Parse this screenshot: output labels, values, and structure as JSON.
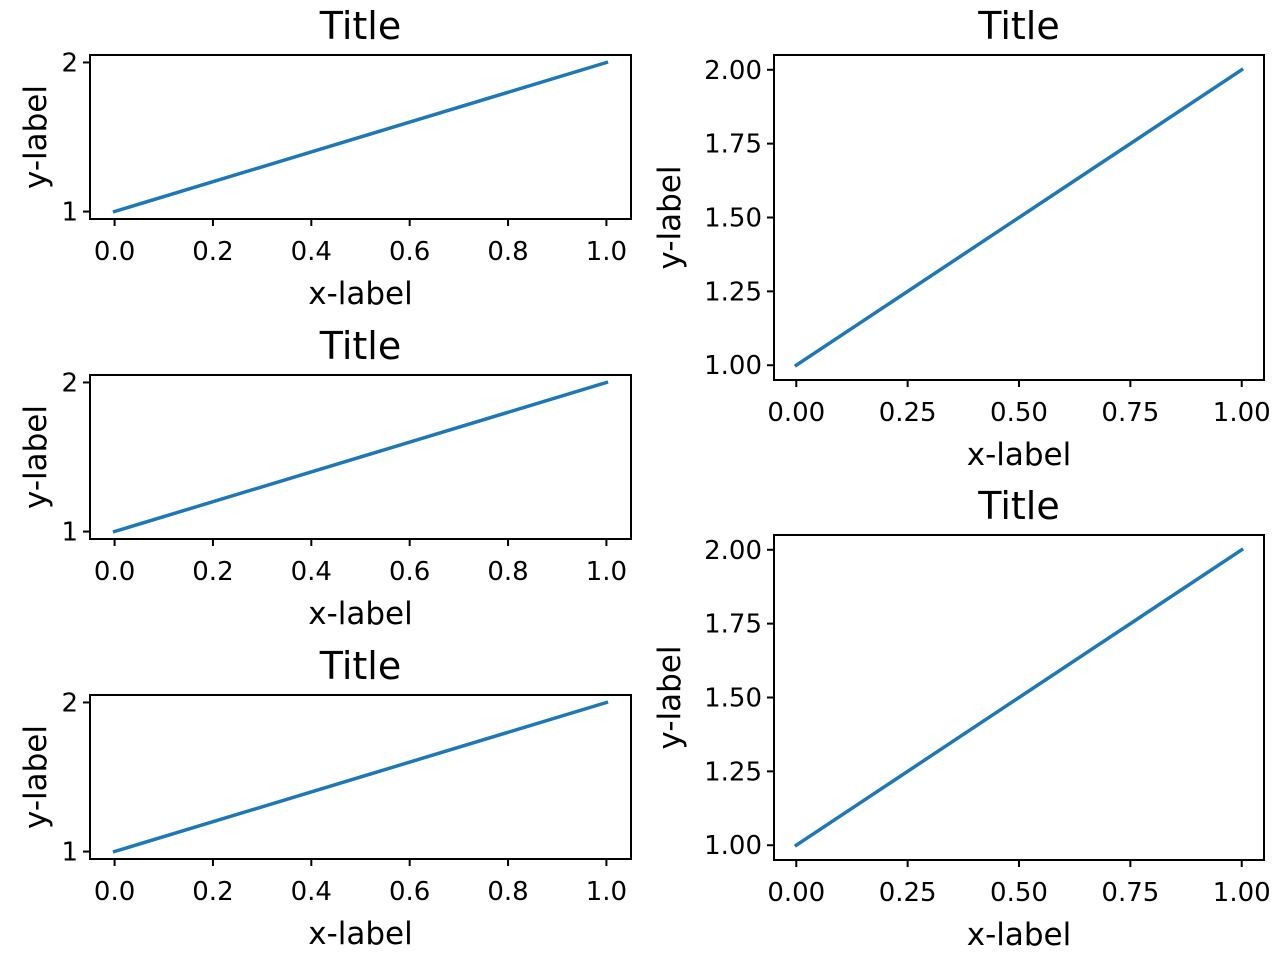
{
  "chart_data": [
    {
      "type": "line",
      "title": "Title",
      "xlabel": "x-label",
      "ylabel": "y-label",
      "xlim": [
        -0.05,
        1.05
      ],
      "ylim": [
        0.95,
        2.05
      ],
      "xticks": [
        0.0,
        0.2,
        0.4,
        0.6,
        0.8,
        1.0
      ],
      "xtick_labels": [
        "0.0",
        "0.2",
        "0.4",
        "0.6",
        "0.8",
        "1.0"
      ],
      "yticks": [
        1,
        2
      ],
      "ytick_labels": [
        "1",
        "2"
      ],
      "grid": false,
      "series": [
        {
          "x": [
            0,
            1
          ],
          "y": [
            1,
            2
          ],
          "color": "#1f77b4"
        }
      ]
    },
    {
      "type": "line",
      "title": "Title",
      "xlabel": "x-label",
      "ylabel": "y-label",
      "xlim": [
        -0.05,
        1.05
      ],
      "ylim": [
        0.95,
        2.05
      ],
      "xticks": [
        0.0,
        0.2,
        0.4,
        0.6,
        0.8,
        1.0
      ],
      "xtick_labels": [
        "0.0",
        "0.2",
        "0.4",
        "0.6",
        "0.8",
        "1.0"
      ],
      "yticks": [
        1,
        2
      ],
      "ytick_labels": [
        "1",
        "2"
      ],
      "grid": false,
      "series": [
        {
          "x": [
            0,
            1
          ],
          "y": [
            1,
            2
          ],
          "color": "#1f77b4"
        }
      ]
    },
    {
      "type": "line",
      "title": "Title",
      "xlabel": "x-label",
      "ylabel": "y-label",
      "xlim": [
        -0.05,
        1.05
      ],
      "ylim": [
        0.95,
        2.05
      ],
      "xticks": [
        0.0,
        0.2,
        0.4,
        0.6,
        0.8,
        1.0
      ],
      "xtick_labels": [
        "0.0",
        "0.2",
        "0.4",
        "0.6",
        "0.8",
        "1.0"
      ],
      "yticks": [
        1,
        2
      ],
      "ytick_labels": [
        "1",
        "2"
      ],
      "grid": false,
      "series": [
        {
          "x": [
            0,
            1
          ],
          "y": [
            1,
            2
          ],
          "color": "#1f77b4"
        }
      ]
    },
    {
      "type": "line",
      "title": "Title",
      "xlabel": "x-label",
      "ylabel": "y-label",
      "xlim": [
        -0.05,
        1.05
      ],
      "ylim": [
        0.95,
        2.05
      ],
      "xticks": [
        0.0,
        0.25,
        0.5,
        0.75,
        1.0
      ],
      "xtick_labels": [
        "0.00",
        "0.25",
        "0.50",
        "0.75",
        "1.00"
      ],
      "yticks": [
        1.0,
        1.25,
        1.5,
        1.75,
        2.0
      ],
      "ytick_labels": [
        "1.00",
        "1.25",
        "1.50",
        "1.75",
        "2.00"
      ],
      "grid": false,
      "series": [
        {
          "x": [
            0,
            1
          ],
          "y": [
            1,
            2
          ],
          "color": "#1f77b4"
        }
      ]
    },
    {
      "type": "line",
      "title": "Title",
      "xlabel": "x-label",
      "ylabel": "y-label",
      "xlim": [
        -0.05,
        1.05
      ],
      "ylim": [
        0.95,
        2.05
      ],
      "xticks": [
        0.0,
        0.25,
        0.5,
        0.75,
        1.0
      ],
      "xtick_labels": [
        "0.00",
        "0.25",
        "0.50",
        "0.75",
        "1.00"
      ],
      "yticks": [
        1.0,
        1.25,
        1.5,
        1.75,
        2.0
      ],
      "ytick_labels": [
        "1.00",
        "1.25",
        "1.50",
        "1.75",
        "2.00"
      ],
      "grid": false,
      "series": [
        {
          "x": [
            0,
            1
          ],
          "y": [
            1,
            2
          ],
          "color": "#1f77b4"
        }
      ]
    }
  ]
}
